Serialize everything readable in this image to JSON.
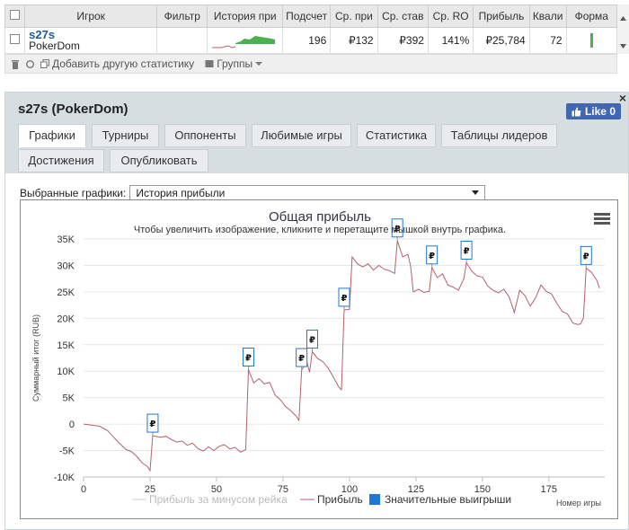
{
  "table": {
    "headers": [
      "Игрок",
      "Фильтр",
      "История при",
      "Подсчет",
      "Ср. при",
      "Ср. став",
      "Ср. RO",
      "Прибыль",
      "Квали",
      "Форма"
    ],
    "row": {
      "player": "s27s",
      "site": "PokerDom",
      "count": "196",
      "avg_profit": "₽132",
      "avg_stake": "₽392",
      "avg_roi": "141%",
      "profit": "₽25,784",
      "quality": "72"
    },
    "toolbar": {
      "add_stat": "Добавить другую статистику",
      "groups": "Группы"
    }
  },
  "panel": {
    "title": "s27s (PokerDom)",
    "fb_like": "Like 0",
    "tabs": [
      "Графики",
      "Турниры",
      "Оппоненты",
      "Любимые игры",
      "Статистика",
      "Таблицы лидеров",
      "Достижения",
      "Опубликовать"
    ],
    "active_tab": "Графики",
    "select_label": "Выбранные графики:",
    "select_value": "История прибыли"
  },
  "chart_data": {
    "type": "line",
    "title": "Общая прибыль",
    "subtitle": "Чтобы увеличить изображение, кликните и перетащите мышкой внутрь графика.",
    "ylabel": "Суммарный итог (RUB)",
    "xlabel": "Номер игры",
    "xlim": [
      0,
      196
    ],
    "ylim": [
      -10000,
      35000
    ],
    "x_ticks": [
      0,
      25,
      50,
      75,
      100,
      125,
      150,
      175
    ],
    "y_ticks": [
      -10000,
      -5000,
      0,
      5000,
      10000,
      15000,
      20000,
      25000,
      30000,
      35000
    ],
    "y_tick_labels": [
      "-10K",
      "-5K",
      "0",
      "5K",
      "10K",
      "15K",
      "20K",
      "25K",
      "30K",
      "35K"
    ],
    "currency_symbol": "₽",
    "colors": {
      "line": "#b5606a",
      "rake_line": "#cccccc",
      "markers": "#1f77d4"
    },
    "series": [
      {
        "name": "Прибыль",
        "points": [
          [
            0,
            0
          ],
          [
            3,
            -200
          ],
          [
            6,
            -400
          ],
          [
            9,
            -1200
          ],
          [
            11,
            -2300
          ],
          [
            13,
            -3400
          ],
          [
            16,
            -4800
          ],
          [
            18,
            -5200
          ],
          [
            20,
            -6100
          ],
          [
            22,
            -7300
          ],
          [
            24,
            -8000
          ],
          [
            25,
            -8800
          ],
          [
            26,
            -2200
          ],
          [
            29,
            -2500
          ],
          [
            31,
            -2300
          ],
          [
            33,
            -2900
          ],
          [
            35,
            -3400
          ],
          [
            37,
            -3200
          ],
          [
            39,
            -4000
          ],
          [
            41,
            -3600
          ],
          [
            43,
            -4600
          ],
          [
            45,
            -5100
          ],
          [
            47,
            -4300
          ],
          [
            49,
            -5000
          ],
          [
            51,
            -4200
          ],
          [
            53,
            -3900
          ],
          [
            55,
            -4700
          ],
          [
            57,
            -4400
          ],
          [
            59,
            -5300
          ],
          [
            61,
            -4800
          ],
          [
            62,
            10300
          ],
          [
            64,
            7800
          ],
          [
            66,
            8600
          ],
          [
            68,
            7600
          ],
          [
            70,
            7900
          ],
          [
            72,
            5500
          ],
          [
            74,
            4600
          ],
          [
            76,
            3300
          ],
          [
            78,
            2500
          ],
          [
            80,
            1500
          ],
          [
            81,
            700
          ],
          [
            82,
            10200
          ],
          [
            84,
            11800
          ],
          [
            85,
            9800
          ],
          [
            86,
            13700
          ],
          [
            88,
            12400
          ],
          [
            90,
            11800
          ],
          [
            92,
            10600
          ],
          [
            94,
            8800
          ],
          [
            96,
            7000
          ],
          [
            97,
            6500
          ],
          [
            98,
            21600
          ],
          [
            100,
            21700
          ],
          [
            101,
            31600
          ],
          [
            103,
            30300
          ],
          [
            105,
            29700
          ],
          [
            107,
            30300
          ],
          [
            109,
            29100
          ],
          [
            111,
            30000
          ],
          [
            113,
            29300
          ],
          [
            115,
            29000
          ],
          [
            117,
            28500
          ],
          [
            118,
            34700
          ],
          [
            120,
            31600
          ],
          [
            122,
            32100
          ],
          [
            123,
            29800
          ],
          [
            124,
            25000
          ],
          [
            126,
            25500
          ],
          [
            128,
            24900
          ],
          [
            130,
            25100
          ],
          [
            131,
            29600
          ],
          [
            133,
            27700
          ],
          [
            135,
            28400
          ],
          [
            137,
            26300
          ],
          [
            139,
            25900
          ],
          [
            141,
            25300
          ],
          [
            143,
            27500
          ],
          [
            144,
            30500
          ],
          [
            146,
            28900
          ],
          [
            148,
            28000
          ],
          [
            150,
            27800
          ],
          [
            152,
            26100
          ],
          [
            154,
            25300
          ],
          [
            156,
            24800
          ],
          [
            158,
            25500
          ],
          [
            160,
            24100
          ],
          [
            162,
            21100
          ],
          [
            164,
            25300
          ],
          [
            166,
            24300
          ],
          [
            168,
            22300
          ],
          [
            170,
            23900
          ],
          [
            172,
            26300
          ],
          [
            174,
            25100
          ],
          [
            176,
            24600
          ],
          [
            178,
            22800
          ],
          [
            180,
            21300
          ],
          [
            182,
            20800
          ],
          [
            184,
            19100
          ],
          [
            186,
            18800
          ],
          [
            187,
            19000
          ],
          [
            188,
            20100
          ],
          [
            189,
            29500
          ],
          [
            191,
            28700
          ],
          [
            193,
            27200
          ],
          [
            194,
            25700
          ]
        ]
      }
    ],
    "big_wins_x": [
      26,
      62,
      82,
      86,
      98,
      118,
      131,
      144,
      189
    ],
    "legend": [
      "Прибыль за минусом рейка",
      "Прибыль",
      "Значительные выигрыши"
    ]
  }
}
